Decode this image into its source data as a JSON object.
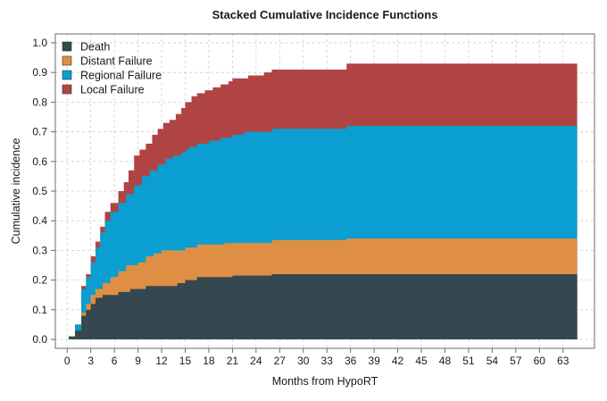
{
  "chart_data": {
    "type": "area",
    "step": true,
    "stacked": true,
    "title": "Stacked Cumulative Incidence Functions",
    "xlabel": "Months from HypoRT",
    "ylabel": "Cumulative incidence",
    "xlim": [
      -1.5,
      67
    ],
    "ylim": [
      -0.03,
      1.03
    ],
    "xticks": [
      0,
      3,
      6,
      9,
      12,
      15,
      18,
      21,
      24,
      27,
      30,
      33,
      36,
      39,
      42,
      45,
      48,
      51,
      54,
      57,
      60,
      63
    ],
    "yticks": [
      "0.0",
      "0.1",
      "0.2",
      "0.3",
      "0.4",
      "0.5",
      "0.6",
      "0.7",
      "0.8",
      "0.9",
      "1.0"
    ],
    "grid": true,
    "legend_position": "top-left",
    "legend": [
      "Death",
      "Distant Failure",
      "Regional Failure",
      "Local Failure"
    ],
    "x_max": 64.8,
    "series": [
      {
        "name": "Death",
        "color": "#35484F",
        "points": [
          [
            0.2,
            0.01
          ],
          [
            1,
            0.03
          ],
          [
            1.8,
            0.08
          ],
          [
            2.4,
            0.1
          ],
          [
            3,
            0.12
          ],
          [
            3.6,
            0.14
          ],
          [
            4.5,
            0.15
          ],
          [
            6.5,
            0.16
          ],
          [
            8,
            0.17
          ],
          [
            10,
            0.18
          ],
          [
            14,
            0.19
          ],
          [
            15,
            0.2
          ],
          [
            16.5,
            0.21
          ],
          [
            21,
            0.215
          ],
          [
            26,
            0.22
          ]
        ]
      },
      {
        "name": "Distant Failure",
        "color": "#DE8F44",
        "points": [
          [
            0.2,
            0.01
          ],
          [
            1,
            0.03
          ],
          [
            1.8,
            0.09
          ],
          [
            2.4,
            0.12
          ],
          [
            3,
            0.15
          ],
          [
            3.6,
            0.17
          ],
          [
            4.5,
            0.19
          ],
          [
            5.5,
            0.21
          ],
          [
            6.5,
            0.23
          ],
          [
            7.5,
            0.25
          ],
          [
            9,
            0.26
          ],
          [
            10,
            0.28
          ],
          [
            11,
            0.29
          ],
          [
            12,
            0.3
          ],
          [
            15,
            0.31
          ],
          [
            16.5,
            0.32
          ],
          [
            20,
            0.325
          ],
          [
            26,
            0.335
          ],
          [
            35.5,
            0.34
          ]
        ]
      },
      {
        "name": "Regional Failure",
        "color": "#0B9ED0",
        "points": [
          [
            0.2,
            0.01
          ],
          [
            1,
            0.05
          ],
          [
            1.8,
            0.17
          ],
          [
            2.4,
            0.21
          ],
          [
            3,
            0.26
          ],
          [
            3.6,
            0.31
          ],
          [
            4.2,
            0.36
          ],
          [
            4.8,
            0.4
          ],
          [
            5.5,
            0.43
          ],
          [
            6.5,
            0.46
          ],
          [
            7.5,
            0.49
          ],
          [
            8.5,
            0.52
          ],
          [
            9.5,
            0.55
          ],
          [
            10.5,
            0.57
          ],
          [
            11.5,
            0.59
          ],
          [
            12.5,
            0.61
          ],
          [
            13.5,
            0.62
          ],
          [
            14.5,
            0.63
          ],
          [
            15,
            0.64
          ],
          [
            15.5,
            0.65
          ],
          [
            16.5,
            0.66
          ],
          [
            18,
            0.67
          ],
          [
            19.5,
            0.68
          ],
          [
            21,
            0.69
          ],
          [
            22.5,
            0.7
          ],
          [
            26,
            0.71
          ],
          [
            35.5,
            0.72
          ]
        ]
      },
      {
        "name": "Local Failure",
        "color": "#B04444",
        "points": [
          [
            0.2,
            0.01
          ],
          [
            1,
            0.05
          ],
          [
            1.8,
            0.18
          ],
          [
            2.4,
            0.22
          ],
          [
            3,
            0.28
          ],
          [
            3.6,
            0.33
          ],
          [
            4.2,
            0.38
          ],
          [
            4.8,
            0.43
          ],
          [
            5.5,
            0.46
          ],
          [
            6.5,
            0.5
          ],
          [
            7.2,
            0.53
          ],
          [
            7.8,
            0.57
          ],
          [
            8.5,
            0.62
          ],
          [
            9.2,
            0.64
          ],
          [
            10,
            0.66
          ],
          [
            10.8,
            0.69
          ],
          [
            11.5,
            0.71
          ],
          [
            12.2,
            0.73
          ],
          [
            13,
            0.74
          ],
          [
            13.8,
            0.76
          ],
          [
            14.5,
            0.78
          ],
          [
            15,
            0.8
          ],
          [
            15.8,
            0.82
          ],
          [
            16.5,
            0.83
          ],
          [
            17.5,
            0.84
          ],
          [
            18.5,
            0.85
          ],
          [
            19.5,
            0.86
          ],
          [
            20.5,
            0.87
          ],
          [
            21,
            0.88
          ],
          [
            23,
            0.89
          ],
          [
            25,
            0.9
          ],
          [
            26,
            0.91
          ],
          [
            35.5,
            0.93
          ]
        ]
      }
    ]
  }
}
